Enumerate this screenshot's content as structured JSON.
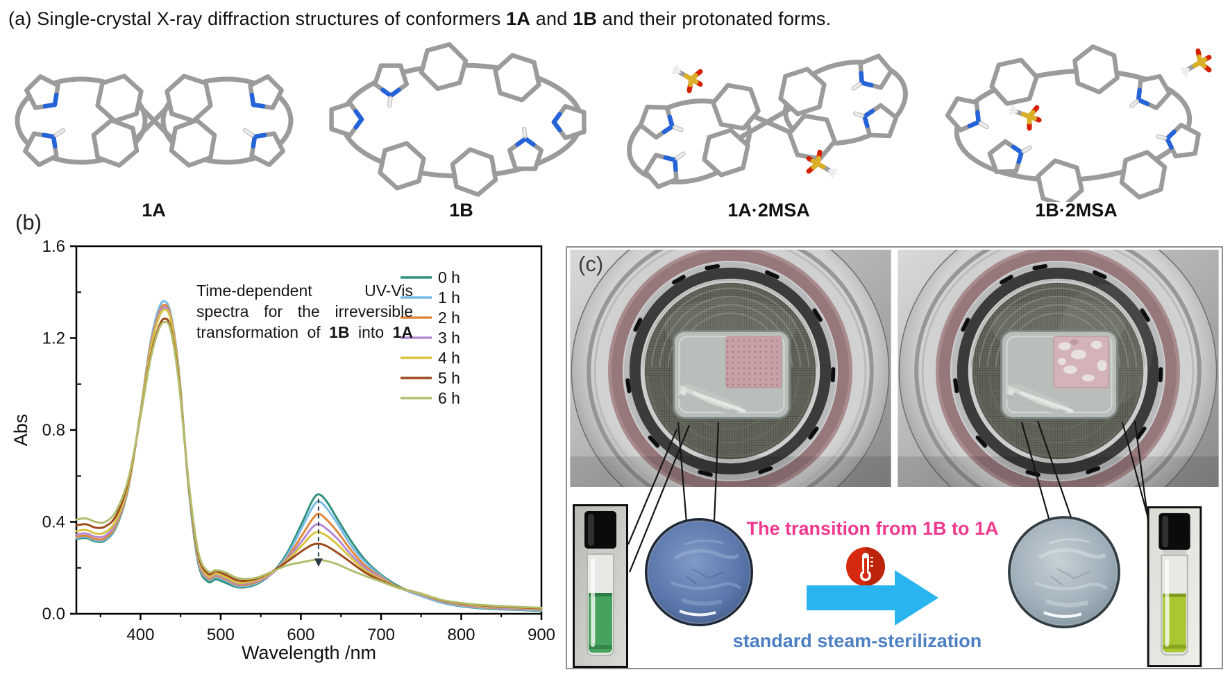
{
  "panel_a": {
    "label": "(a)",
    "title_segments": [
      {
        "t": "(a) Single-crystal X-ray diffraction structures of conformers ",
        "b": false
      },
      {
        "t": "1A",
        "b": true
      },
      {
        "t": " and ",
        "b": false
      },
      {
        "t": "1B",
        "b": true
      },
      {
        "t": " and their protonated forms.",
        "b": false
      }
    ],
    "molecules": [
      {
        "name": "1A",
        "type": "figure-eight macrocycle"
      },
      {
        "name": "1B",
        "type": "open oval macrocycle"
      },
      {
        "name": "1A·2MSA",
        "type": "protonated figure-eight with two methanesulfonate anions"
      },
      {
        "name": "1B·2MSA",
        "type": "protonated oval with two methanesulfonate anions"
      }
    ],
    "colors": {
      "carbon": "#9b9b9b",
      "nitrogen": "#2563d8",
      "hydrogen": "#ececec",
      "hydrogen_edge": "#c0c0c0",
      "sulfur": "#d9b028",
      "oxygen": "#d42000"
    }
  },
  "panel_b": {
    "label": "(b)"
  },
  "chart_data": {
    "type": "line",
    "title": "",
    "xlabel": "Wavelength /nm",
    "ylabel": "Abs",
    "xlim": [
      320,
      900
    ],
    "ylim": [
      0,
      1.6
    ],
    "x_ticks": [
      400,
      500,
      600,
      700,
      800,
      900
    ],
    "y_ticks": [
      0,
      0.4,
      0.8,
      1.2,
      1.6
    ],
    "y_tick_labels": [
      "0.0",
      "0.4",
      "0.8",
      "1.2",
      "1.6"
    ],
    "grid": false,
    "legend_position": "top-right",
    "annotation_lines": [
      [
        {
          "t": "Time-dependent UV-Vis",
          "b": false
        }
      ],
      [
        {
          "t": "spectra for the irreversible",
          "b": false
        }
      ],
      [
        {
          "t": "transformation of ",
          "b": false
        },
        {
          "t": "1B",
          "b": true
        },
        {
          "t": " into ",
          "b": false
        },
        {
          "t": "1A",
          "b": true
        }
      ]
    ],
    "arrow": {
      "x": 622,
      "y_from": 0.5,
      "y_to": 0.235,
      "style": "dashed-down"
    },
    "x": [
      320,
      332,
      344,
      356,
      370,
      385,
      400,
      412,
      422,
      430,
      438,
      448,
      460,
      472,
      484,
      494,
      506,
      522,
      542,
      562,
      582,
      602,
      614,
      622,
      632,
      646,
      662,
      680,
      700,
      722,
      748,
      780,
      820,
      860,
      900
    ],
    "series": [
      {
        "name": "0 h",
        "color": "#2f8f7f",
        "values": [
          0.325,
          0.33,
          0.315,
          0.32,
          0.38,
          0.55,
          0.88,
          1.17,
          1.32,
          1.36,
          1.3,
          1.05,
          0.55,
          0.22,
          0.14,
          0.15,
          0.135,
          0.115,
          0.125,
          0.17,
          0.26,
          0.4,
          0.49,
          0.52,
          0.49,
          0.41,
          0.32,
          0.235,
          0.17,
          0.12,
          0.08,
          0.045,
          0.025,
          0.018,
          0.013
        ]
      },
      {
        "name": "1 h",
        "color": "#79bce8",
        "values": [
          0.33,
          0.335,
          0.32,
          0.325,
          0.385,
          0.555,
          0.88,
          1.17,
          1.32,
          1.36,
          1.3,
          1.05,
          0.56,
          0.23,
          0.15,
          0.16,
          0.145,
          0.12,
          0.13,
          0.17,
          0.25,
          0.38,
          0.46,
          0.49,
          0.46,
          0.39,
          0.3,
          0.225,
          0.165,
          0.115,
          0.08,
          0.046,
          0.027,
          0.02,
          0.015
        ]
      },
      {
        "name": "2 h",
        "color": "#e0873b",
        "values": [
          0.335,
          0.34,
          0.325,
          0.33,
          0.39,
          0.555,
          0.875,
          1.16,
          1.3,
          1.345,
          1.29,
          1.04,
          0.56,
          0.235,
          0.155,
          0.165,
          0.15,
          0.125,
          0.135,
          0.17,
          0.24,
          0.345,
          0.41,
          0.435,
          0.41,
          0.355,
          0.28,
          0.21,
          0.16,
          0.115,
          0.085,
          0.05,
          0.03,
          0.023,
          0.018
        ]
      },
      {
        "name": "3 h",
        "color": "#b48ad2",
        "values": [
          0.345,
          0.35,
          0.335,
          0.34,
          0.4,
          0.56,
          0.87,
          1.15,
          1.29,
          1.335,
          1.28,
          1.03,
          0.56,
          0.24,
          0.16,
          0.17,
          0.155,
          0.13,
          0.14,
          0.17,
          0.235,
          0.32,
          0.375,
          0.39,
          0.37,
          0.325,
          0.26,
          0.2,
          0.155,
          0.115,
          0.085,
          0.05,
          0.032,
          0.025,
          0.02
        ]
      },
      {
        "name": "4 h",
        "color": "#d8c23e",
        "values": [
          0.36,
          0.365,
          0.35,
          0.355,
          0.41,
          0.565,
          0.87,
          1.14,
          1.28,
          1.325,
          1.275,
          1.03,
          0.565,
          0.25,
          0.165,
          0.175,
          0.16,
          0.135,
          0.145,
          0.175,
          0.23,
          0.3,
          0.345,
          0.355,
          0.34,
          0.3,
          0.245,
          0.19,
          0.15,
          0.115,
          0.088,
          0.053,
          0.035,
          0.028,
          0.022
        ]
      },
      {
        "name": "5 h",
        "color": "#9c4a1b",
        "values": [
          0.385,
          0.39,
          0.375,
          0.38,
          0.43,
          0.58,
          0.86,
          1.11,
          1.24,
          1.285,
          1.24,
          1.01,
          0.57,
          0.26,
          0.175,
          0.185,
          0.17,
          0.145,
          0.15,
          0.18,
          0.225,
          0.275,
          0.3,
          0.305,
          0.295,
          0.265,
          0.225,
          0.18,
          0.145,
          0.113,
          0.09,
          0.055,
          0.038,
          0.03,
          0.024
        ]
      },
      {
        "name": "6 h",
        "color": "#b4bd6e",
        "values": [
          0.41,
          0.415,
          0.4,
          0.4,
          0.45,
          0.59,
          0.86,
          1.1,
          1.23,
          1.27,
          1.23,
          1.0,
          0.575,
          0.27,
          0.185,
          0.19,
          0.18,
          0.155,
          0.155,
          0.18,
          0.21,
          0.225,
          0.233,
          0.235,
          0.23,
          0.215,
          0.19,
          0.165,
          0.14,
          0.112,
          0.09,
          0.057,
          0.04,
          0.032,
          0.026
        ]
      }
    ]
  },
  "panel_c": {
    "label": "(c)",
    "transition_text": "The transition from 1B to 1A",
    "transition_color": "#f0388e",
    "process_text": "standard steam-sterilization",
    "process_color": "#4d7fc3",
    "arrow_color": "#29b4ef",
    "thermometer_color": "#d62a10",
    "thermometer_shadow": "#a81f08",
    "photos": [
      {
        "name": "autoclave chamber before sterilization"
      },
      {
        "name": "autoclave chamber after sterilization"
      }
    ],
    "items": {
      "vial_before_color": "#45a35e",
      "vial_before_dark": "#2e7d44",
      "disc_before_color": "#5b77ab",
      "disc_after_color": "#9fafb9",
      "vial_after_color": "#a9c730",
      "vial_after_dark": "#7f9c1e",
      "gasket_color": "#96777a"
    }
  }
}
